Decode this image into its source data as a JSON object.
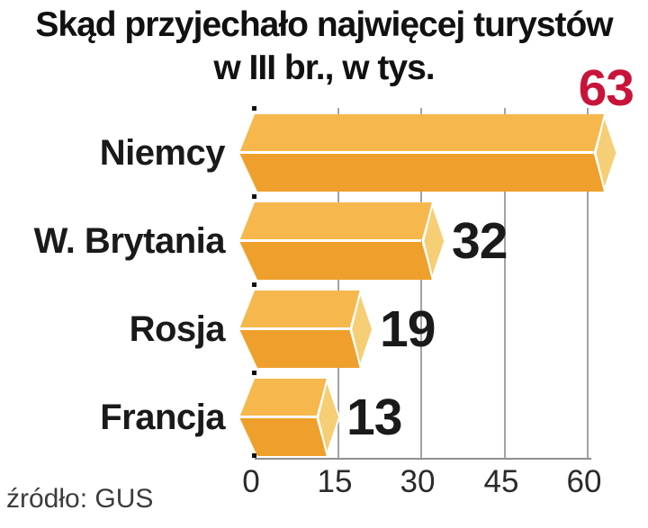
{
  "title": {
    "line1": "Skąd przyjechało najwięcej turystów",
    "line2": "w III br., w tys."
  },
  "source": "źródło: GUS",
  "chart_data": {
    "type": "bar",
    "orientation": "horizontal",
    "title": "Skąd przyjechało najwięcej turystów w III br., w tys.",
    "categories": [
      "Niemcy",
      "W. Brytania",
      "Rosja",
      "Francja"
    ],
    "values": [
      63,
      32,
      19,
      13
    ],
    "value_labels": [
      "63",
      "32",
      "19",
      "13"
    ],
    "xlabel": "",
    "ylabel": "",
    "xlim": [
      0,
      60
    ],
    "xticks": [
      0,
      15,
      30,
      45,
      60
    ],
    "grid": true,
    "unit": "tys.",
    "source": "GUS",
    "highlight": {
      "category": "Niemcy",
      "value": 63,
      "value_color": "#c8143a"
    }
  },
  "colors": {
    "bar_top_face": "#f6b84d",
    "bar_bottom_face": "#efa02c",
    "bar_end_cap": "#f5ce76",
    "divider": "#ffffff",
    "gridline": "#a3a3a3",
    "axis": "#8f8f8f",
    "text": "#1a1a1a",
    "highlight_value": "#c8143a",
    "source_text": "#3c3c3c"
  }
}
